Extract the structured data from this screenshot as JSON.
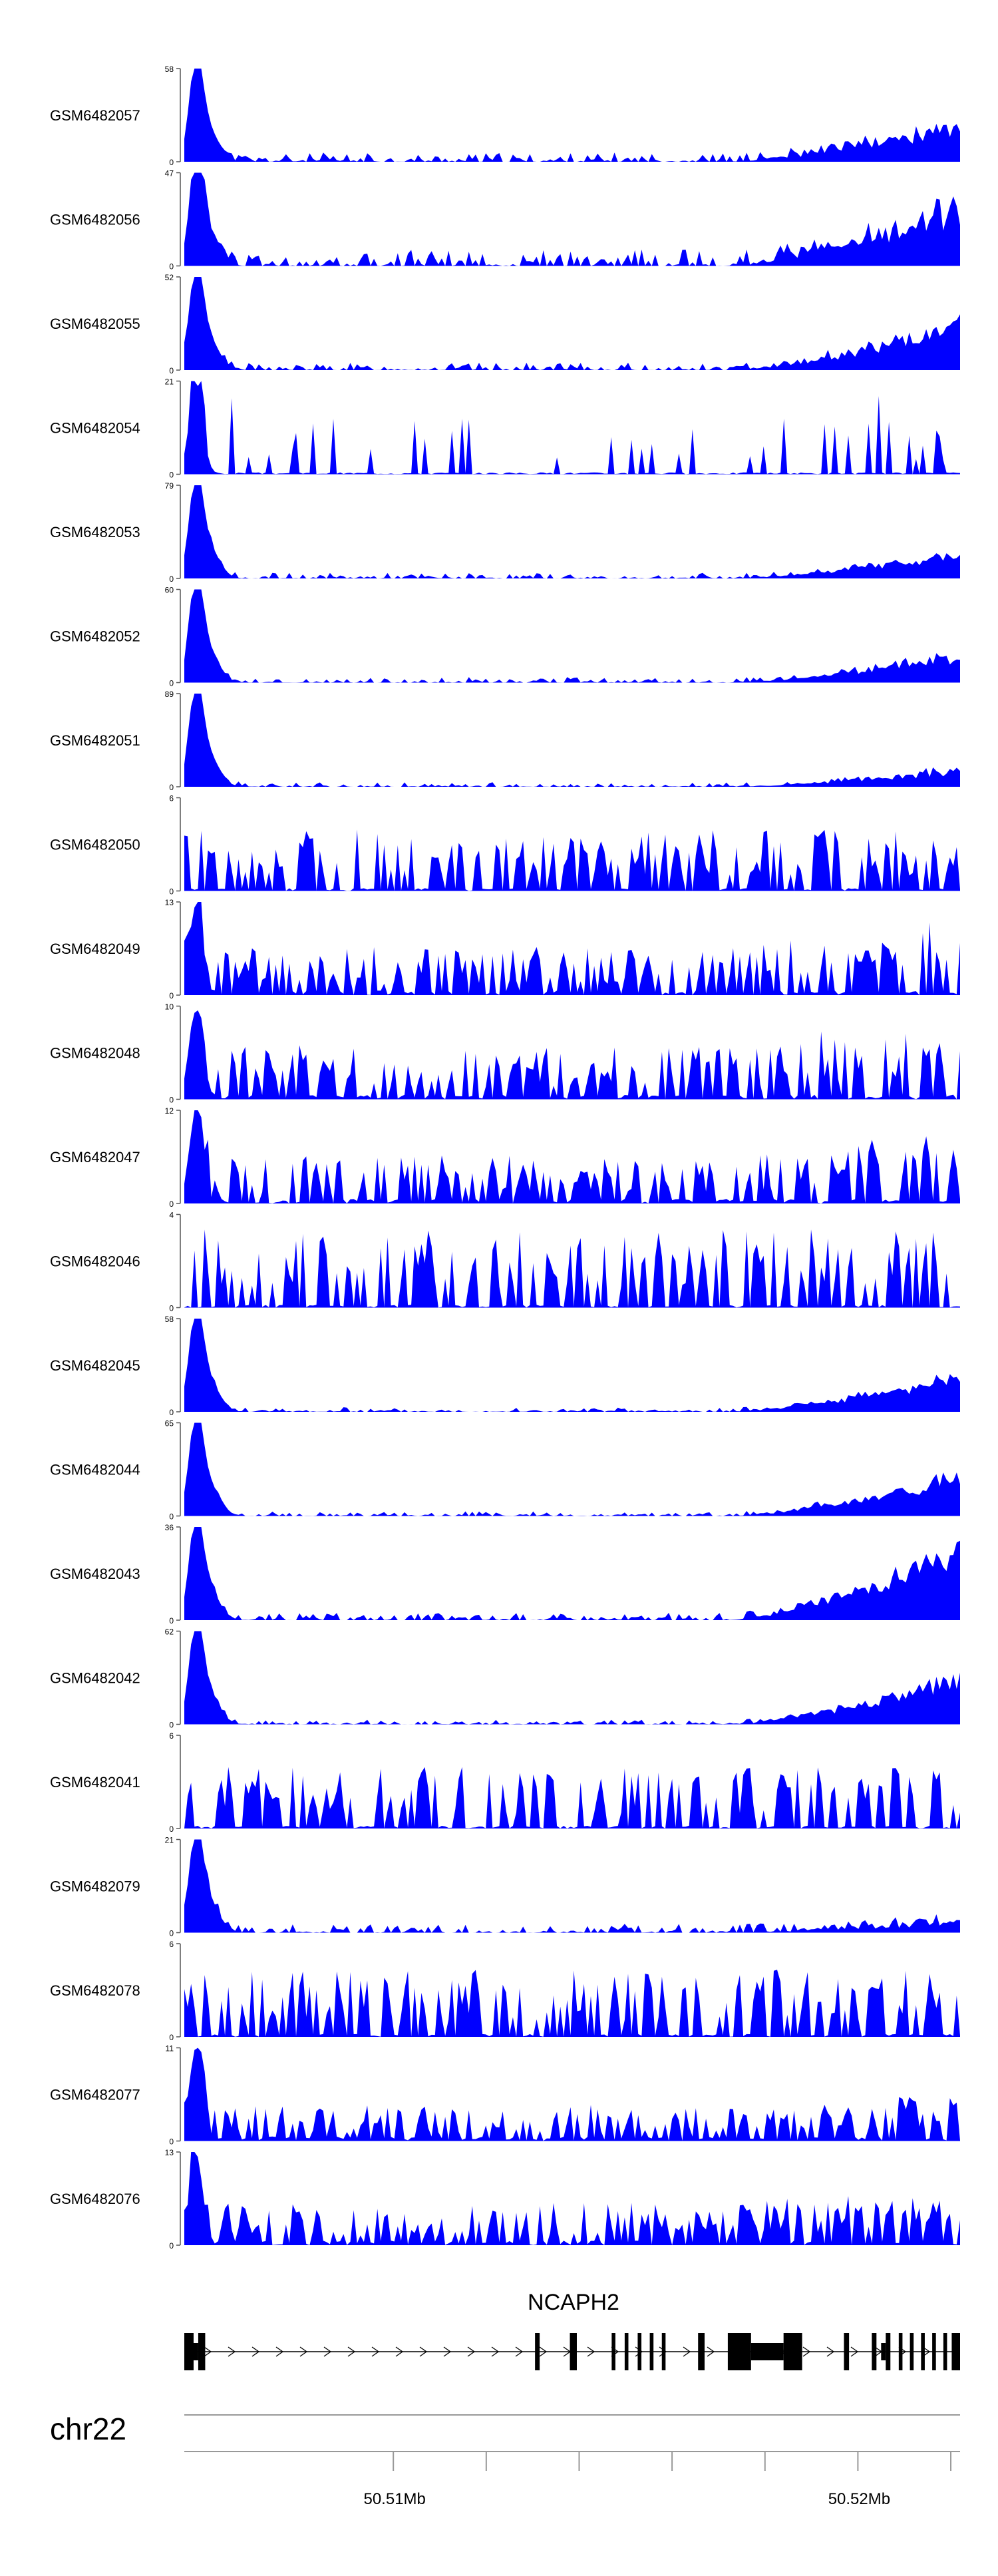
{
  "colors": {
    "track_fill": "#0000ff",
    "axis": "#555555",
    "gene": "#000000",
    "ideogram_line": "#999999"
  },
  "genome": {
    "chromosome": "chr22",
    "tick_labels": [
      "50.51Mb",
      "50.52Mb"
    ],
    "gene_label": "NCAPH2"
  },
  "chart_data": {
    "type": "area",
    "x_range_mb": [
      50.5055,
      50.5222
    ],
    "x_ticks_mb": [
      50.51,
      50.512,
      50.514,
      50.516,
      50.518,
      50.52,
      50.522
    ],
    "x_tick_labels": {
      "50.51": "50.51Mb",
      "50.52": "50.52Mb"
    },
    "tracks": [
      {
        "name": "GSM6482057",
        "ymax": 58,
        "pattern": "peak-ramp",
        "seed": 11,
        "noise": 0.1,
        "ramp": 0.45
      },
      {
        "name": "GSM6482056",
        "ymax": 47,
        "pattern": "peak-ramp",
        "seed": 12,
        "noise": 0.18,
        "ramp": 0.7
      },
      {
        "name": "GSM6482055",
        "ymax": 52,
        "pattern": "peak-ramp",
        "seed": 13,
        "noise": 0.08,
        "ramp": 0.55
      },
      {
        "name": "GSM6482054",
        "ymax": 21,
        "pattern": "peak-sparse",
        "seed": 14,
        "noise": 0.3,
        "ramp": 0.1
      },
      {
        "name": "GSM6482053",
        "ymax": 79,
        "pattern": "peak-ramp",
        "seed": 15,
        "noise": 0.06,
        "ramp": 0.3
      },
      {
        "name": "GSM6482052",
        "ymax": 60,
        "pattern": "peak-ramp",
        "seed": 16,
        "noise": 0.06,
        "ramp": 0.32
      },
      {
        "name": "GSM6482051",
        "ymax": 89,
        "pattern": "peak-ramp",
        "seed": 17,
        "noise": 0.05,
        "ramp": 0.2
      },
      {
        "name": "GSM6482050",
        "ymax": 6,
        "pattern": "noisy",
        "seed": 18,
        "noise": 0.55,
        "ramp": 0.0
      },
      {
        "name": "GSM6482049",
        "ymax": 13,
        "pattern": "noisy-peak",
        "seed": 19,
        "noise": 0.4,
        "ramp": 0.45
      },
      {
        "name": "GSM6482048",
        "ymax": 10,
        "pattern": "noisy-peak",
        "seed": 20,
        "noise": 0.45,
        "ramp": 0.45
      },
      {
        "name": "GSM6482047",
        "ymax": 12,
        "pattern": "noisy-peak",
        "seed": 21,
        "noise": 0.4,
        "ramp": 0.5
      },
      {
        "name": "GSM6482046",
        "ymax": 4,
        "pattern": "noisy",
        "seed": 22,
        "noise": 0.7,
        "ramp": 0.0
      },
      {
        "name": "GSM6482045",
        "ymax": 58,
        "pattern": "peak-ramp",
        "seed": 23,
        "noise": 0.05,
        "ramp": 0.45
      },
      {
        "name": "GSM6482044",
        "ymax": 65,
        "pattern": "peak-ramp",
        "seed": 24,
        "noise": 0.05,
        "ramp": 0.48
      },
      {
        "name": "GSM6482043",
        "ymax": 36,
        "pattern": "peak-ramp",
        "seed": 25,
        "noise": 0.08,
        "ramp": 0.85
      },
      {
        "name": "GSM6482042",
        "ymax": 62,
        "pattern": "peak-ramp",
        "seed": 26,
        "noise": 0.05,
        "ramp": 0.6
      },
      {
        "name": "GSM6482041",
        "ymax": 6,
        "pattern": "noisy",
        "seed": 27,
        "noise": 0.55,
        "ramp": 0.0
      },
      {
        "name": "GSM6482079",
        "ymax": 21,
        "pattern": "peak-ramp",
        "seed": 28,
        "noise": 0.1,
        "ramp": 0.12
      },
      {
        "name": "GSM6482078",
        "ymax": 6,
        "pattern": "noisy",
        "seed": 29,
        "noise": 0.6,
        "ramp": 0.0
      },
      {
        "name": "GSM6482077",
        "ymax": 11,
        "pattern": "noisy-peak",
        "seed": 30,
        "noise": 0.3,
        "ramp": 0.2
      },
      {
        "name": "GSM6482076",
        "ymax": 13,
        "pattern": "noisy-peak",
        "seed": 31,
        "noise": 0.35,
        "ramp": 0.25
      }
    ],
    "gene_model": {
      "start_mb": 50.5055,
      "end_mb": 50.5222,
      "strand": "+",
      "exons_mb": [
        [
          50.5055,
          50.5057
        ],
        [
          50.5058,
          50.50595
        ],
        [
          50.51305,
          50.51315
        ],
        [
          50.5138,
          50.51395
        ],
        [
          50.5147,
          50.51478
        ],
        [
          50.51498,
          50.51506
        ],
        [
          50.51526,
          50.51534
        ],
        [
          50.51552,
          50.5156
        ],
        [
          50.51578,
          50.51586
        ],
        [
          50.51656,
          50.5167
        ],
        [
          50.5172,
          50.5177
        ],
        [
          50.5184,
          50.5188
        ],
        [
          50.5197,
          50.51981
        ],
        [
          50.5203,
          50.5204
        ],
        [
          50.5206,
          50.5207
        ],
        [
          50.52088,
          50.52096
        ],
        [
          50.52112,
          50.5212
        ],
        [
          50.52136,
          50.52144
        ],
        [
          50.5216,
          50.52168
        ],
        [
          50.52184,
          50.52192
        ],
        [
          50.52202,
          50.5222
        ]
      ],
      "utr_mb": [
        [
          50.5055,
          50.5058
        ],
        [
          50.5177,
          50.5184
        ],
        [
          50.5205,
          50.5206
        ],
        [
          50.52204,
          50.5222
        ]
      ]
    }
  }
}
